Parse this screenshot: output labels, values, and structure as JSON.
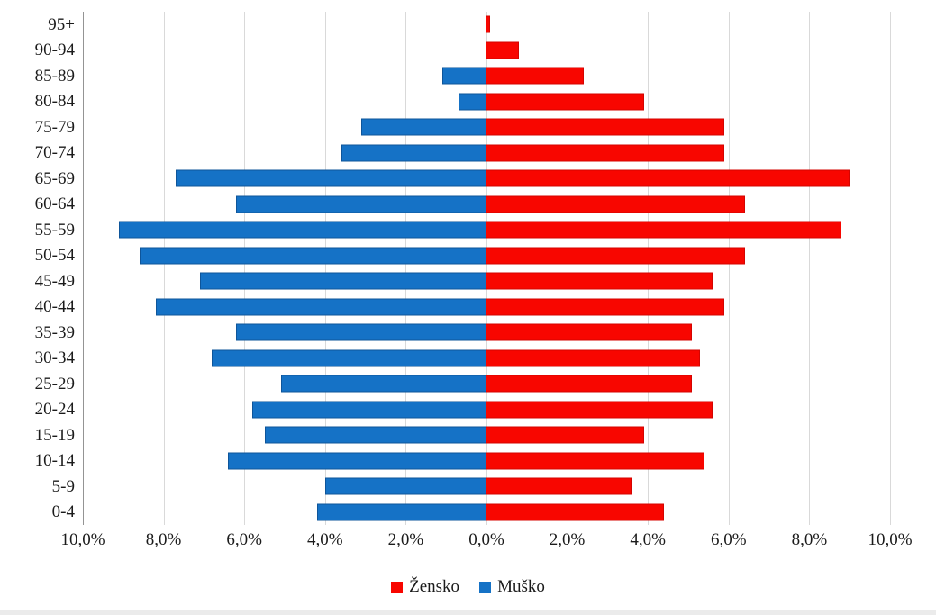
{
  "chart_data": {
    "type": "bar",
    "subtype": "population-pyramid",
    "orientation": "horizontal",
    "title": "",
    "categories": [
      "95+",
      "90-94",
      "85-89",
      "80-84",
      "75-79",
      "70-74",
      "65-69",
      "60-64",
      "55-59",
      "50-54",
      "45-49",
      "40-44",
      "35-39",
      "30-34",
      "25-29",
      "20-24",
      "15-19",
      "10-14",
      "5-9",
      "0-4"
    ],
    "series": [
      {
        "id": "zensko",
        "name": "Žensko",
        "side": "right",
        "color": "#f80600",
        "border_color": "#d40400",
        "values": [
          0.1,
          0.8,
          2.4,
          3.9,
          5.9,
          5.9,
          9.0,
          6.4,
          8.8,
          6.4,
          5.6,
          5.9,
          5.1,
          5.3,
          5.1,
          5.6,
          3.9,
          5.4,
          3.6,
          4.4
        ]
      },
      {
        "id": "musko",
        "name": "Muško",
        "side": "left",
        "color": "#1572c6",
        "border_color": "#0e559a",
        "values": [
          0.0,
          0.0,
          1.1,
          0.7,
          3.1,
          3.6,
          7.7,
          6.2,
          9.1,
          8.6,
          7.1,
          8.2,
          6.2,
          6.8,
          5.1,
          5.8,
          5.5,
          6.4,
          4.0,
          4.2
        ]
      }
    ],
    "x_tick_labels": [
      "10,0%",
      "8,0%",
      "6,0%",
      "4,0%",
      "2,0%",
      "0,0%",
      "2,0%",
      "4,0%",
      "6,0%",
      "8,0%",
      "10,0%"
    ],
    "x_max_each_side": 10.0,
    "value_unit": "%",
    "number_format": "comma-decimal",
    "grid": true,
    "legend_position": "bottom",
    "legend_order": [
      "Žensko",
      "Muško"
    ]
  }
}
